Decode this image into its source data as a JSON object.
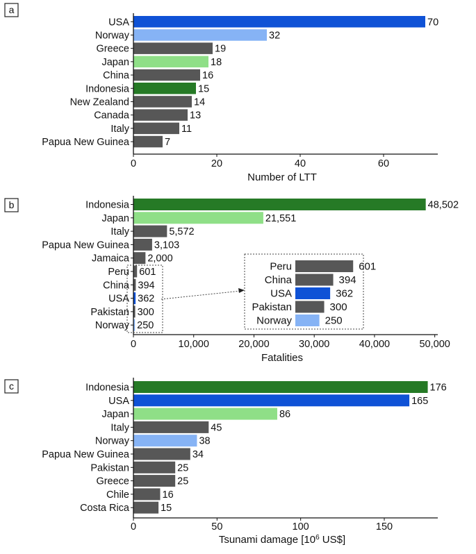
{
  "colors": {
    "gray": "#575757",
    "dark_green": "#267a26",
    "light_green": "#8fdf87",
    "blue": "#0f52d6",
    "light_blue": "#86b3f5"
  },
  "chart_data": [
    {
      "type": "bar",
      "orientation": "horizontal",
      "panel_label": "a",
      "xlabel": "Number of LTT",
      "categories": [
        "USA",
        "Norway",
        "Greece",
        "Japan",
        "China",
        "Indonesia",
        "New Zealand",
        "Canada",
        "Italy",
        "Papua New Guinea"
      ],
      "values": [
        70,
        32,
        19,
        18,
        16,
        15,
        14,
        13,
        11,
        7
      ],
      "value_labels": [
        "70",
        "32",
        "19",
        "18",
        "16",
        "15",
        "14",
        "13",
        "11",
        "7"
      ],
      "bar_colors": [
        "blue",
        "light_blue",
        "gray",
        "light_green",
        "gray",
        "dark_green",
        "gray",
        "gray",
        "gray",
        "gray"
      ],
      "xlim": [
        0,
        73
      ],
      "xticks": [
        0,
        20,
        40,
        60
      ],
      "xtick_labels": [
        "0",
        "20",
        "40",
        "60"
      ]
    },
    {
      "type": "bar",
      "orientation": "horizontal",
      "panel_label": "b",
      "xlabel": "Fatalities",
      "categories": [
        "Indonesia",
        "Japan",
        "Italy",
        "Papua New Guinea",
        "Jamaica",
        "Peru",
        "China",
        "USA",
        "Pakistan",
        "Norway"
      ],
      "values": [
        48502,
        21551,
        5572,
        3103,
        2000,
        601,
        394,
        362,
        300,
        250
      ],
      "value_labels": [
        "48,502",
        "21,551",
        "5,572",
        "3,103",
        "2,000",
        "601",
        "394",
        "362",
        "300",
        "250"
      ],
      "bar_colors": [
        "dark_green",
        "light_green",
        "gray",
        "gray",
        "gray",
        "gray",
        "gray",
        "blue",
        "gray",
        "light_blue"
      ],
      "xlim": [
        0,
        50500
      ],
      "xticks": [
        0,
        10000,
        20000,
        30000,
        40000,
        50000
      ],
      "xtick_labels": [
        "0",
        "10,000",
        "20,000",
        "30,000",
        "40,000",
        "50,000"
      ],
      "inset": {
        "categories": [
          "Peru",
          "China",
          "USA",
          "Pakistan",
          "Norway"
        ],
        "values": [
          601,
          394,
          362,
          300,
          250
        ],
        "value_labels": [
          "601",
          "394",
          "362",
          "300",
          "250"
        ],
        "bar_colors": [
          "gray",
          "gray",
          "blue",
          "gray",
          "light_blue"
        ]
      }
    },
    {
      "type": "bar",
      "orientation": "horizontal",
      "panel_label": "c",
      "xlabel": "Tsunami damage [10",
      "xlabel_superscript": "6",
      "xlabel_suffix": " US$]",
      "categories": [
        "Indonesia",
        "USA",
        "Japan",
        "Italy",
        "Norway",
        "Papua New Guinea",
        "Pakistan",
        "Greece",
        "Chile",
        "Costa Rica"
      ],
      "values": [
        176,
        165,
        86,
        45,
        38,
        34,
        25,
        25,
        16,
        15
      ],
      "value_labels": [
        "176",
        "165",
        "86",
        "45",
        "38",
        "34",
        "25",
        "25",
        "16",
        "15"
      ],
      "bar_colors": [
        "dark_green",
        "blue",
        "light_green",
        "gray",
        "light_blue",
        "gray",
        "gray",
        "gray",
        "gray",
        "gray"
      ],
      "xlim": [
        0,
        182
      ],
      "xticks": [
        0,
        50,
        100,
        150
      ],
      "xtick_labels": [
        "0",
        "50",
        "100",
        "150"
      ]
    }
  ]
}
